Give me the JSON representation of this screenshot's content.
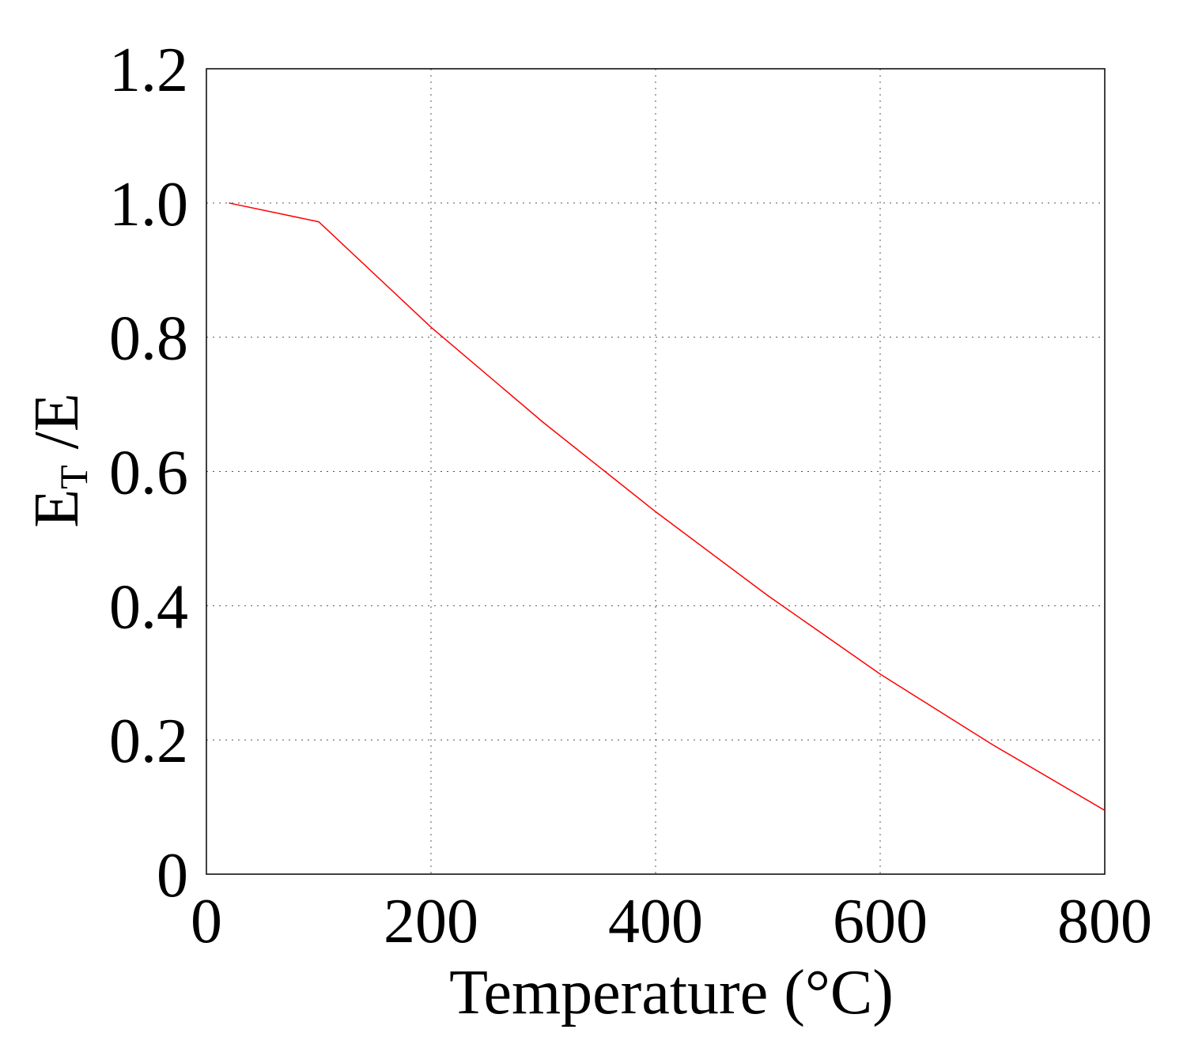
{
  "chart_data": {
    "type": "line",
    "title": "",
    "xlabel": "Temperature (°C)",
    "ylabel_main": "E",
    "ylabel_sub": "T",
    "ylabel_tail": " /E",
    "xlim": [
      0,
      800
    ],
    "ylim": [
      0,
      1.2
    ],
    "xticks": [
      0,
      200,
      400,
      600,
      800
    ],
    "xtick_labels": [
      "0",
      "200",
      "400",
      "600",
      "800"
    ],
    "yticks": [
      0,
      0.2,
      0.4,
      0.6,
      0.8,
      1.0,
      1.2
    ],
    "ytick_labels": [
      "0",
      "0.2",
      "0.4",
      "0.6",
      "0.8",
      "1.0",
      "1.2"
    ],
    "grid": true,
    "series": [
      {
        "name": "E_T/E",
        "color": "#ff0000",
        "x": [
          20,
          100,
          200,
          300,
          400,
          500,
          600,
          700,
          800
        ],
        "y": [
          1.0,
          0.972,
          0.815,
          0.673,
          0.54,
          0.415,
          0.298,
          0.193,
          0.095
        ]
      }
    ]
  }
}
